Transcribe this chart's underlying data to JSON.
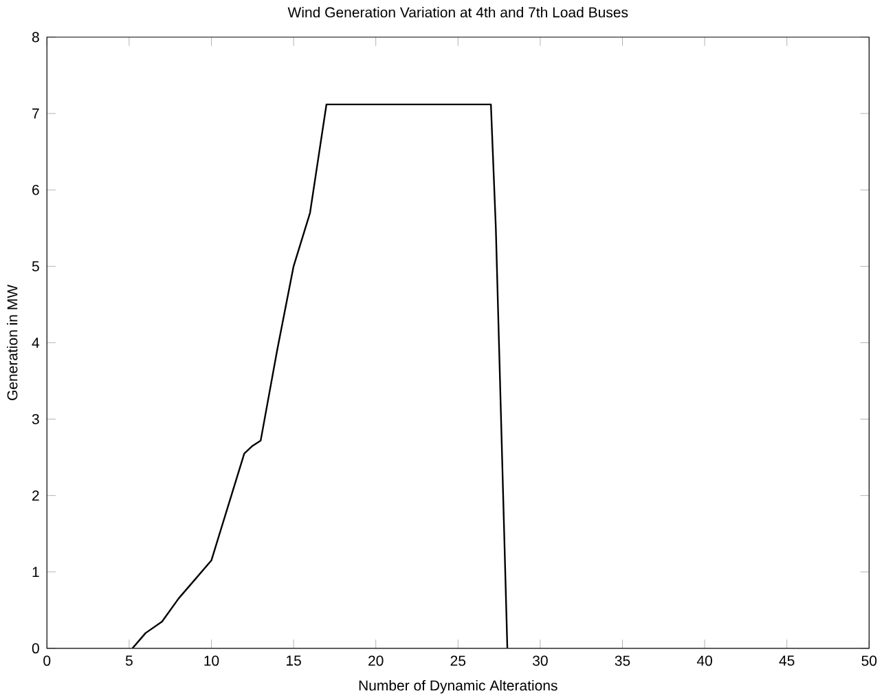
{
  "chart_data": {
    "type": "line",
    "title": "Wind Generation Variation at 4th and 7th Load Buses",
    "xlabel": "Number of Dynamic Alterations",
    "ylabel": "Generation in MW",
    "series": [
      {
        "color": "#000000",
        "x": [
          5.2,
          6,
          7,
          8,
          9,
          10,
          11,
          12,
          12.5,
          13,
          14,
          15,
          16,
          17,
          27,
          27.3,
          28
        ],
        "values": [
          0,
          0.2,
          0.35,
          0.65,
          0.9,
          1.15,
          1.85,
          2.55,
          2.65,
          2.72,
          3.9,
          5.0,
          5.7,
          7.12,
          7.12,
          5.5,
          0
        ]
      }
    ],
    "xlim": [
      0,
      50
    ],
    "ylim": [
      0,
      8
    ],
    "xticks": [
      0,
      5,
      10,
      15,
      20,
      25,
      30,
      35,
      40,
      45,
      50
    ],
    "yticks": [
      0,
      1,
      2,
      3,
      4,
      5,
      6,
      7,
      8
    ],
    "grid": false,
    "marker": "none",
    "line_style": "solid"
  }
}
